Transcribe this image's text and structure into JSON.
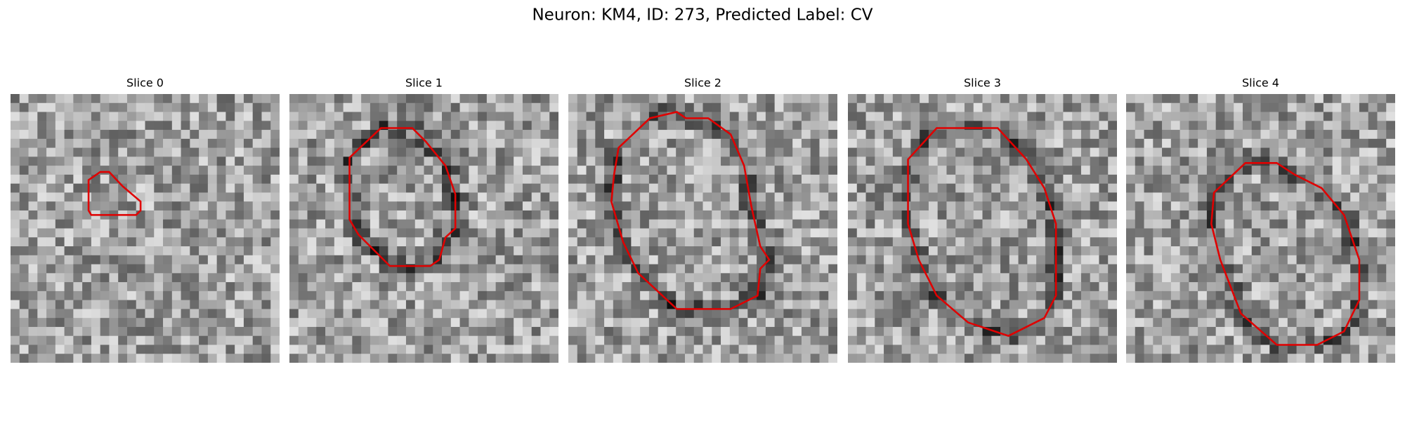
{
  "title": "Neuron: KM4, ID: 273, Predicted Label: CV",
  "panels": [
    {
      "title": "Slice 0"
    },
    {
      "title": "Slice 1"
    },
    {
      "title": "Slice 2"
    },
    {
      "title": "Slice 3"
    },
    {
      "title": "Slice 4"
    }
  ]
}
